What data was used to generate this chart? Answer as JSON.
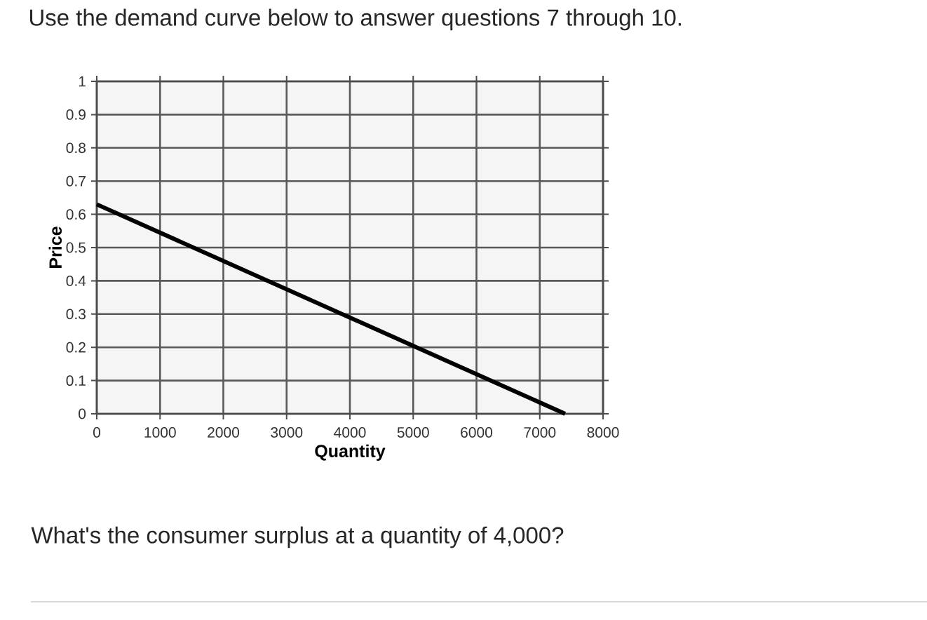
{
  "chart_data": {
    "type": "line",
    "title": "Use the demand curve below to answer questions 7 through 10.",
    "xlabel": "Quantity",
    "ylabel": "Price",
    "annotations": [
      "What's the consumer surplus at a quantity of 4,000?"
    ],
    "x": [
      0,
      7400
    ],
    "values": [
      0.63,
      0
    ],
    "color": "#000000",
    "xlim": [
      0,
      8000
    ],
    "xticks": [
      0,
      1000,
      2000,
      3000,
      4000,
      5000,
      6000,
      7000,
      8000
    ],
    "ylim": [
      0,
      1
    ],
    "yticks": [
      0,
      0.1,
      0.2,
      0.3,
      0.4,
      0.5,
      0.6,
      0.7,
      0.8,
      0.9,
      1
    ],
    "grid": true,
    "marker": "none",
    "line_style": "solid"
  }
}
